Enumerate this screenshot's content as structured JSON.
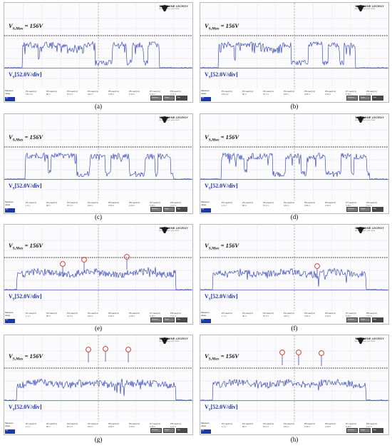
{
  "brand": {
    "name": "TELEDYNE LECROY",
    "tagline": "Everywhere you look"
  },
  "vmax_label": {
    "var": "V",
    "sub": "S,Max",
    "rest": " = 156V"
  },
  "vdiv_label": {
    "var": "V",
    "sub": "S",
    "rest": "[52.0V/div]"
  },
  "measure": {
    "label_top": "Measure",
    "label_sub": "value",
    "columns": [
      "P1:max(C1)",
      "P2:max(C1)",
      "P3:max(C1)",
      "P4:max(C1)",
      "P5:max(C1)",
      "P6:max(C1)",
      "P7:max(C1)",
      "P8:max(C1)"
    ]
  },
  "panels": [
    {
      "caption": "(a)",
      "markers": 0,
      "vals": [
        "156 mV",
        "98 V",
        "87.3 V",
        "160 V",
        "9.56 V",
        "2.00 V",
        "5.45 V",
        "3.17 V"
      ]
    },
    {
      "caption": "(b)",
      "markers": 0,
      "vals": [
        "156 mV",
        "98 V",
        "87.3 V",
        "160 V",
        "9.56 V",
        "2.00 V",
        "5.45 V",
        "3.17 V"
      ]
    },
    {
      "caption": "(c)",
      "markers": 0,
      "vals": [
        "1.0 V",
        "98 V",
        "87.3 V",
        "160 V",
        "9.56 V",
        "2.00 V",
        "5.45 V",
        "3.17 V"
      ]
    },
    {
      "caption": "(d)",
      "markers": 0,
      "vals": [
        "1.0 V",
        "98 V",
        "87.3 V",
        "160 V",
        "9.56 V",
        "2.00 V",
        "5.45 V",
        "3.17 V"
      ]
    },
    {
      "caption": "(e)",
      "markers": 3,
      "vals": [
        "1.1 V",
        "98 V",
        "87.3 V",
        "160 V",
        "9.56 V",
        "2.00 V",
        "5.45 V",
        "3.17 V"
      ]
    },
    {
      "caption": "(f)",
      "markers": 1,
      "vals": [
        "1.1 V",
        "98 V",
        "87.3 V",
        "160 V",
        "9.56 V",
        "2.00 V",
        "5.45 V",
        "3.17 V"
      ]
    },
    {
      "caption": "(g)",
      "markers": 3,
      "vals": [
        "1.1 V",
        "98 V",
        "87.3 V",
        "160 V",
        "9.56 V",
        "2.00 V",
        "5.45 V",
        "3.17 V"
      ]
    },
    {
      "caption": "(h)",
      "markers": 3,
      "vals": [
        "1.1 V",
        "98 V",
        "87.3 V",
        "160 V",
        "9.56 V",
        "2.00 V",
        "5.45 V",
        "3.17 V"
      ]
    }
  ],
  "colors": {
    "trace": "#1f33b5",
    "marker": "#d62b1f",
    "grid": "#d8d8d8",
    "limit": "#222222"
  }
}
